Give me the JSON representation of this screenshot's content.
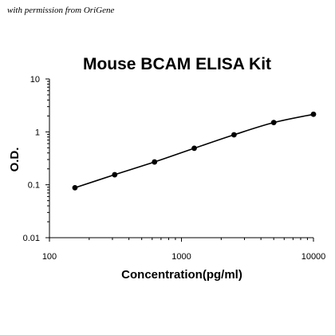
{
  "watermark": "with permission from OriGene",
  "chart_data": {
    "type": "scatter",
    "title": "Mouse BCAM ELISA Kit",
    "xlabel": "Concentration(pg/ml)",
    "ylabel": "O.D.",
    "x_scale": "log",
    "y_scale": "log",
    "xlim": [
      100,
      10000
    ],
    "ylim": [
      0.01,
      10
    ],
    "x_ticks": [
      "100",
      "1000",
      "10000"
    ],
    "y_ticks": [
      "10",
      "1",
      "0.1",
      "0.01"
    ],
    "grid": false,
    "legend": "none",
    "series": [
      {
        "x": [
          156,
          312,
          625,
          1250,
          2500,
          5000,
          10000
        ],
        "y": [
          0.088,
          0.155,
          0.27,
          0.49,
          0.88,
          1.5,
          2.15
        ],
        "fit_line": true
      }
    ]
  }
}
